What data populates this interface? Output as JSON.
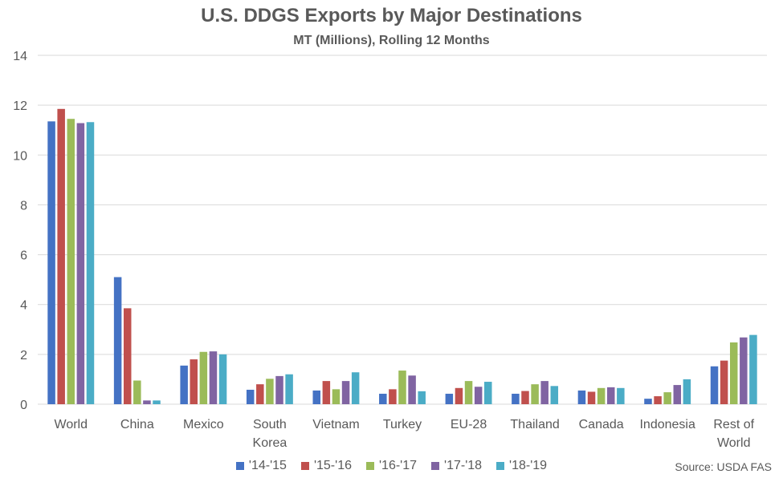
{
  "chart_data": {
    "type": "bar",
    "title": "U.S. DDGS Exports by Major Destinations",
    "subtitle": "MT (Millions), Rolling 12 Months",
    "source": "Source: USDA FAS",
    "categories": [
      [
        "World"
      ],
      [
        "China"
      ],
      [
        "Mexico"
      ],
      [
        "South",
        "Korea"
      ],
      [
        "Vietnam"
      ],
      [
        "Turkey"
      ],
      [
        "EU-28"
      ],
      [
        "Thailand"
      ],
      [
        "Canada"
      ],
      [
        "Indonesia"
      ],
      [
        "Rest of",
        "World"
      ]
    ],
    "ylim": [
      0,
      14
    ],
    "yticks": [
      0,
      2,
      4,
      6,
      8,
      10,
      12,
      14
    ],
    "grid": true,
    "legend_position": "bottom",
    "series": [
      {
        "name": "'14-'15",
        "color": "#4472C4",
        "values": [
          11.35,
          5.1,
          1.55,
          0.58,
          0.55,
          0.42,
          0.42,
          0.42,
          0.55,
          0.22,
          1.52
        ]
      },
      {
        "name": "'15-'16",
        "color": "#C0504D",
        "values": [
          11.85,
          3.85,
          1.8,
          0.8,
          0.93,
          0.6,
          0.65,
          0.53,
          0.5,
          0.32,
          1.75
        ]
      },
      {
        "name": "'16-'17",
        "color": "#9BBB59",
        "values": [
          11.45,
          0.95,
          2.1,
          1.02,
          0.6,
          1.35,
          0.93,
          0.8,
          0.65,
          0.48,
          2.48
        ]
      },
      {
        "name": "'17-'18",
        "color": "#8064A2",
        "values": [
          11.28,
          0.15,
          2.12,
          1.13,
          0.93,
          1.15,
          0.7,
          0.93,
          0.68,
          0.77,
          2.68
        ]
      },
      {
        "name": "'18-'19",
        "color": "#4BACC6",
        "values": [
          11.32,
          0.15,
          2.0,
          1.2,
          1.28,
          0.52,
          0.9,
          0.73,
          0.65,
          1.0,
          2.78
        ]
      }
    ]
  }
}
